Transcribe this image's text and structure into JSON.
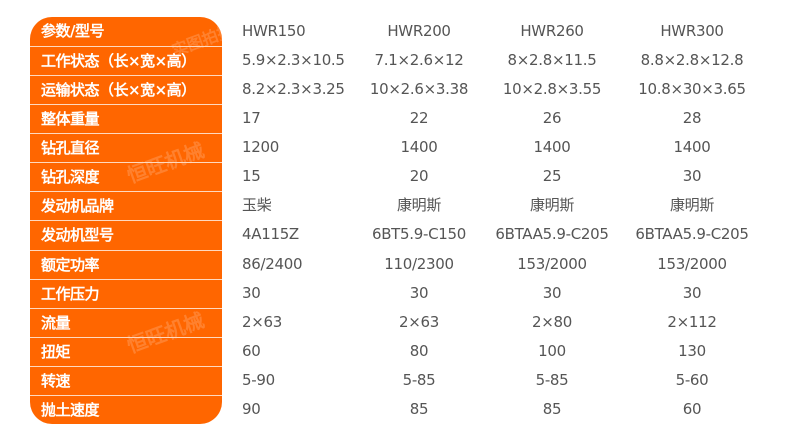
{
  "watermark": {
    "text1": "实图拍摄",
    "text2": "恒旺机械"
  },
  "colors": {
    "label_bg": "#ff6600",
    "label_text": "#ffffff",
    "value_text": "#555555"
  },
  "table": {
    "rows": [
      {
        "label": "参数/型号",
        "values": [
          "HWR150",
          "HWR200",
          "HWR260",
          "HWR300"
        ]
      },
      {
        "label": "工作状态（长×宽×高）",
        "values": [
          "5.9×2.3×10.5",
          "7.1×2.6×12",
          "8×2.8×11.5",
          "8.8×2.8×12.8"
        ]
      },
      {
        "label": "运输状态（长×宽×高）",
        "values": [
          "8.2×2.3×3.25",
          "10×2.6×3.38",
          "10×2.8×3.55",
          "10.8×30×3.65"
        ]
      },
      {
        "label": "整体重量",
        "values": [
          "17",
          "22",
          "26",
          "28"
        ]
      },
      {
        "label": "钻孔直径",
        "values": [
          "1200",
          "1400",
          "1400",
          "1400"
        ]
      },
      {
        "label": "钻孔深度",
        "values": [
          "15",
          "20",
          "25",
          "30"
        ]
      },
      {
        "label": "发动机品牌",
        "values": [
          "玉柴",
          "康明斯",
          "康明斯",
          "康明斯"
        ]
      },
      {
        "label": "发动机型号",
        "values": [
          "4A115Z",
          "6BT5.9-C150",
          "6BTAA5.9-C205",
          "6BTAA5.9-C205"
        ]
      },
      {
        "label": "额定功率",
        "values": [
          "86/2400",
          "110/2300",
          "153/2000",
          "153/2000"
        ]
      },
      {
        "label": "工作压力",
        "values": [
          "30",
          "30",
          "30",
          "30"
        ]
      },
      {
        "label": "流量",
        "values": [
          "2×63",
          "2×63",
          "2×80",
          "2×112"
        ]
      },
      {
        "label": "扭矩",
        "values": [
          "60",
          "80",
          "100",
          "130"
        ]
      },
      {
        "label": "转速",
        "values": [
          "5-90",
          "5-85",
          "5-85",
          "5-60"
        ]
      },
      {
        "label": "抛土速度",
        "values": [
          "90",
          "85",
          "85",
          "60"
        ]
      }
    ]
  }
}
